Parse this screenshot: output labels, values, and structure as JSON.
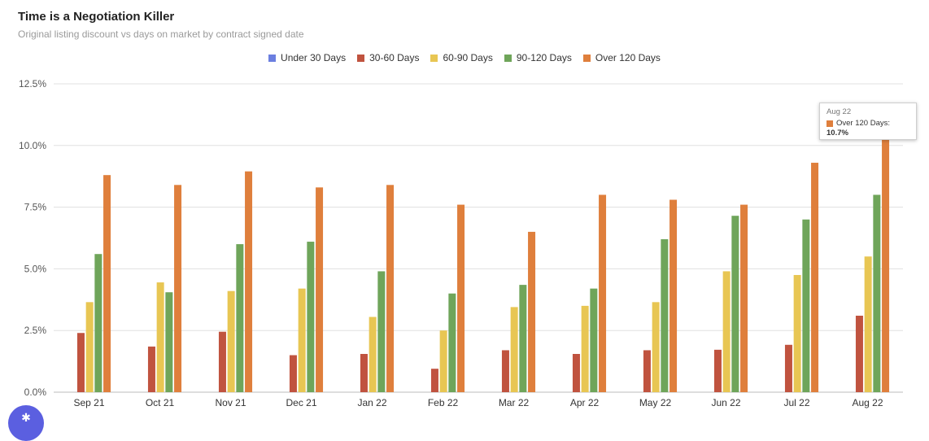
{
  "header": {
    "title": "Time is a Negotiation Killer",
    "subtitle": "Original listing discount vs days on market by contract signed date"
  },
  "tooltip": {
    "category": "Aug 22",
    "series": "Over 120 Days:",
    "value": "10.7%"
  },
  "fab_icon": "settings-icon",
  "colors": {
    "under_30": "#6b7fe0",
    "d30_60": "#c0533f",
    "d60_90": "#e8c653",
    "d90_120": "#6fa55a",
    "over_120": "#df7f3c",
    "gridline": "#e0e0e0",
    "axis_text": "#555555"
  },
  "chart_data": {
    "type": "bar",
    "title": "Time is a Negotiation Killer",
    "subtitle": "Original listing discount vs days on market by contract signed date",
    "xlabel": "",
    "ylabel": "",
    "ylim": [
      0,
      12.5
    ],
    "yticks": [
      0,
      2.5,
      5,
      7.5,
      10,
      12.5
    ],
    "ytick_labels": [
      "0.0%",
      "2.5%",
      "5.0%",
      "7.5%",
      "10.0%",
      "12.5%"
    ],
    "grid": true,
    "legend_position": "top-center",
    "categories": [
      "Sep 21",
      "Oct 21",
      "Nov 21",
      "Dec 21",
      "Jan 22",
      "Feb 22",
      "Mar 22",
      "Apr 22",
      "May 22",
      "Jun 22",
      "Jul 22",
      "Aug 22"
    ],
    "series": [
      {
        "name": "Under 30 Days",
        "color": "#6b7fe0",
        "values": [
          null,
          null,
          null,
          null,
          null,
          null,
          null,
          null,
          null,
          null,
          null,
          null
        ]
      },
      {
        "name": "30-60 Days",
        "color": "#c0533f",
        "values": [
          2.4,
          1.85,
          2.45,
          1.5,
          1.55,
          0.95,
          1.7,
          1.55,
          1.7,
          1.72,
          1.92,
          3.1
        ]
      },
      {
        "name": "60-90 Days",
        "color": "#e8c653",
        "values": [
          3.65,
          4.45,
          4.1,
          4.2,
          3.05,
          2.5,
          3.45,
          3.5,
          3.65,
          4.9,
          4.75,
          5.5
        ]
      },
      {
        "name": "90-120 Days",
        "color": "#6fa55a",
        "values": [
          5.6,
          4.05,
          6.0,
          6.1,
          4.9,
          4.0,
          4.35,
          4.2,
          6.2,
          7.15,
          7.0,
          8.0
        ]
      },
      {
        "name": "Over 120 Days",
        "color": "#df7f3c",
        "values": [
          8.8,
          8.4,
          8.95,
          8.3,
          8.4,
          7.6,
          6.5,
          8.0,
          7.8,
          7.6,
          9.3,
          10.7
        ]
      }
    ]
  }
}
